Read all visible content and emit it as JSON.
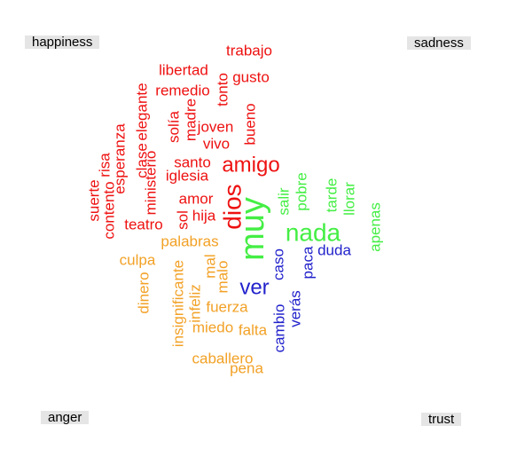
{
  "chart_data": {
    "type": "comparison word cloud",
    "groups": [
      {
        "name": "happiness",
        "color": "#ee1111"
      },
      {
        "name": "sadness",
        "color": "#2222cc"
      },
      {
        "name": "anger",
        "color": "#f2a126"
      },
      {
        "name": "trust",
        "color": "#44ee44"
      }
    ],
    "words": [
      {
        "text": "trabajo",
        "group": "happiness",
        "weight": 2
      },
      {
        "text": "libertad",
        "group": "happiness",
        "weight": 2
      },
      {
        "text": "gusto",
        "group": "happiness",
        "weight": 2
      },
      {
        "text": "remedio",
        "group": "happiness",
        "weight": 2
      },
      {
        "text": "elegante",
        "group": "happiness",
        "weight": 2
      },
      {
        "text": "tonto",
        "group": "happiness",
        "weight": 2
      },
      {
        "text": "madre",
        "group": "happiness",
        "weight": 2
      },
      {
        "text": "solía",
        "group": "happiness",
        "weight": 2
      },
      {
        "text": "joven",
        "group": "happiness",
        "weight": 2
      },
      {
        "text": "bueno",
        "group": "happiness",
        "weight": 2
      },
      {
        "text": "vivo",
        "group": "happiness",
        "weight": 2
      },
      {
        "text": "clase",
        "group": "happiness",
        "weight": 2
      },
      {
        "text": "esperanza",
        "group": "happiness",
        "weight": 2
      },
      {
        "text": "risa",
        "group": "happiness",
        "weight": 2
      },
      {
        "text": "ministerio",
        "group": "happiness",
        "weight": 2
      },
      {
        "text": "santo",
        "group": "happiness",
        "weight": 2
      },
      {
        "text": "amigo",
        "group": "happiness",
        "weight": 4
      },
      {
        "text": "iglesia",
        "group": "happiness",
        "weight": 2
      },
      {
        "text": "suerte",
        "group": "happiness",
        "weight": 2
      },
      {
        "text": "contento",
        "group": "happiness",
        "weight": 2
      },
      {
        "text": "amor",
        "group": "happiness",
        "weight": 2
      },
      {
        "text": "dios",
        "group": "happiness",
        "weight": 5
      },
      {
        "text": "hija",
        "group": "happiness",
        "weight": 2
      },
      {
        "text": "sol",
        "group": "happiness",
        "weight": 2
      },
      {
        "text": "teatro",
        "group": "happiness",
        "weight": 2
      },
      {
        "text": "palabras",
        "group": "anger",
        "weight": 2
      },
      {
        "text": "culpa",
        "group": "anger",
        "weight": 2
      },
      {
        "text": "mal",
        "group": "anger",
        "weight": 2
      },
      {
        "text": "malo",
        "group": "anger",
        "weight": 2
      },
      {
        "text": "dinero",
        "group": "anger",
        "weight": 2
      },
      {
        "text": "insignificante",
        "group": "anger",
        "weight": 2
      },
      {
        "text": "infeliz",
        "group": "anger",
        "weight": 2
      },
      {
        "text": "fuerza",
        "group": "anger",
        "weight": 2
      },
      {
        "text": "miedo",
        "group": "anger",
        "weight": 2
      },
      {
        "text": "falta",
        "group": "anger",
        "weight": 2
      },
      {
        "text": "caballero",
        "group": "anger",
        "weight": 2
      },
      {
        "text": "pena",
        "group": "anger",
        "weight": 2
      },
      {
        "text": "ver",
        "group": "sadness",
        "weight": 4
      },
      {
        "text": "caso",
        "group": "sadness",
        "weight": 2
      },
      {
        "text": "paca",
        "group": "sadness",
        "weight": 2
      },
      {
        "text": "duda",
        "group": "sadness",
        "weight": 2
      },
      {
        "text": "verás",
        "group": "sadness",
        "weight": 2
      },
      {
        "text": "cambio",
        "group": "sadness",
        "weight": 2
      },
      {
        "text": "muy",
        "group": "trust",
        "weight": 6
      },
      {
        "text": "nada",
        "group": "trust",
        "weight": 5
      },
      {
        "text": "salir",
        "group": "trust",
        "weight": 2
      },
      {
        "text": "pobre",
        "group": "trust",
        "weight": 2
      },
      {
        "text": "tarde",
        "group": "trust",
        "weight": 2
      },
      {
        "text": "llorar",
        "group": "trust",
        "weight": 2
      },
      {
        "text": "apenas",
        "group": "trust",
        "weight": 2
      }
    ]
  }
}
